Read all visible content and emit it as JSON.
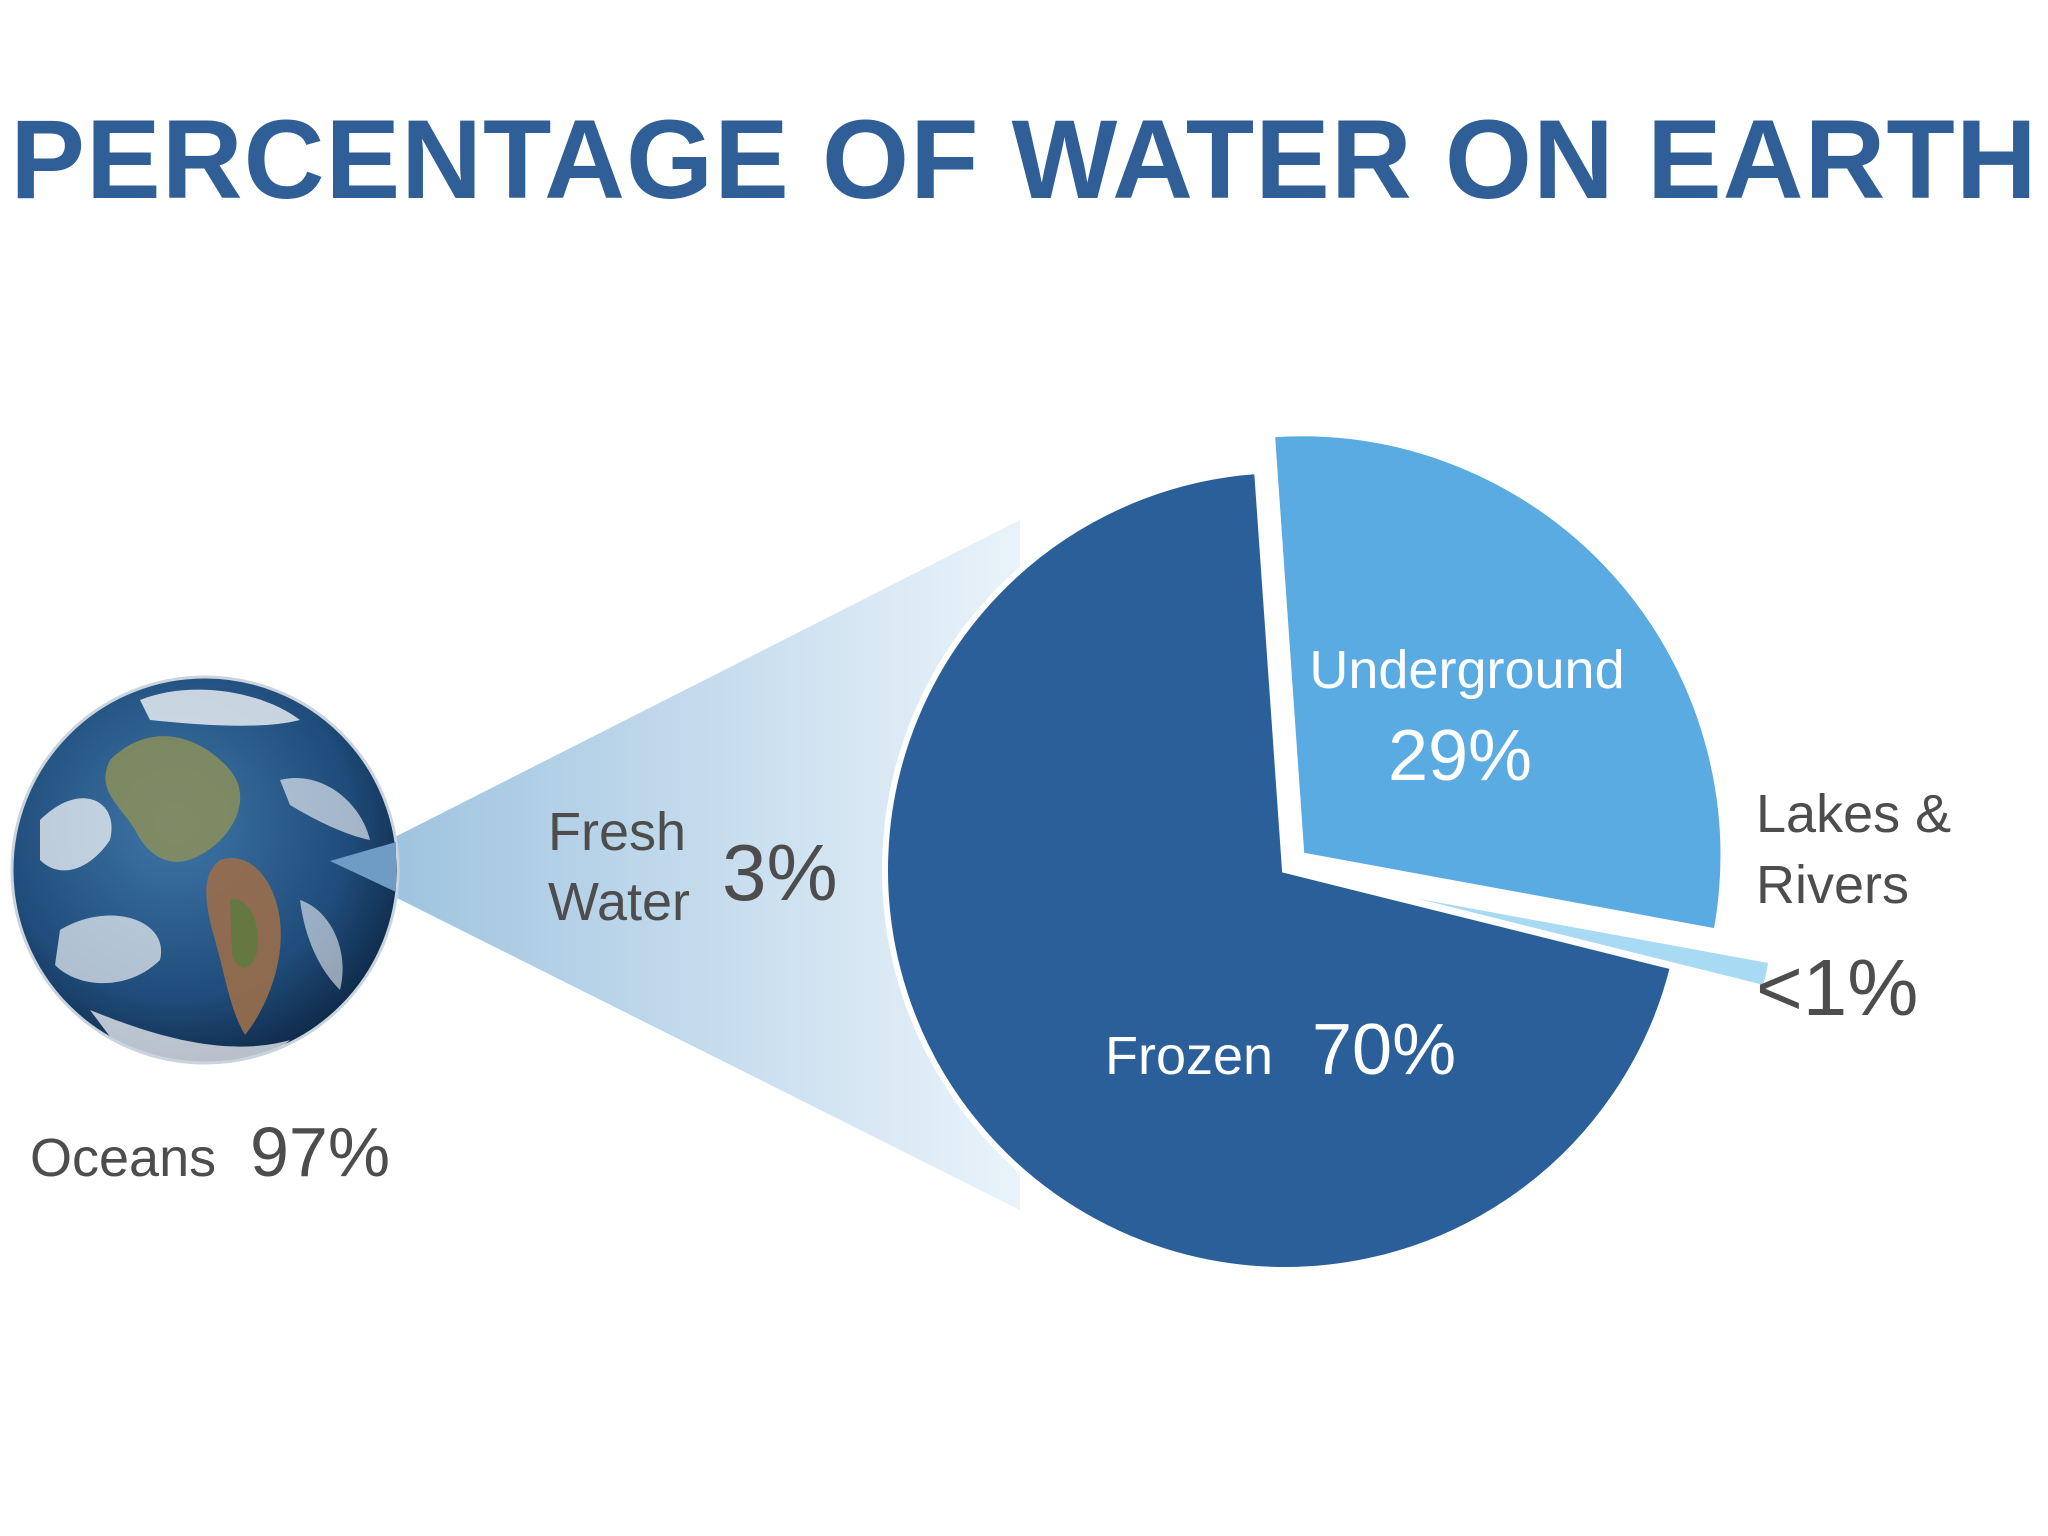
{
  "title": "PERCENTAGE OF WATER ON EARTH",
  "colors": {
    "title": "#2f5f96",
    "frozen": "#2b5f9a",
    "underground": "#5aabe2",
    "lakes_rivers": "#a9daf4",
    "cone": "#cfe2f0",
    "label_text": "#4d4d4d"
  },
  "icons": {
    "earth": "earth-globe-icon"
  },
  "chart_data": [
    {
      "type": "pie",
      "subject": "Earth's water",
      "slices": [
        {
          "label": "Oceans",
          "value": 97,
          "value_label": "97%"
        },
        {
          "label": "Fresh Water",
          "value": 3,
          "value_label": "3%"
        }
      ]
    },
    {
      "type": "pie",
      "subject": "Fresh Water breakdown",
      "slices": [
        {
          "label": "Frozen",
          "value": 70,
          "value_label": "70%"
        },
        {
          "label": "Underground",
          "value": 29,
          "value_label": "29%"
        },
        {
          "label": "Lakes &\nRivers",
          "label_lines": [
            "Lakes &",
            "Rivers"
          ],
          "value": 1,
          "value_label": "<1%"
        }
      ]
    }
  ]
}
